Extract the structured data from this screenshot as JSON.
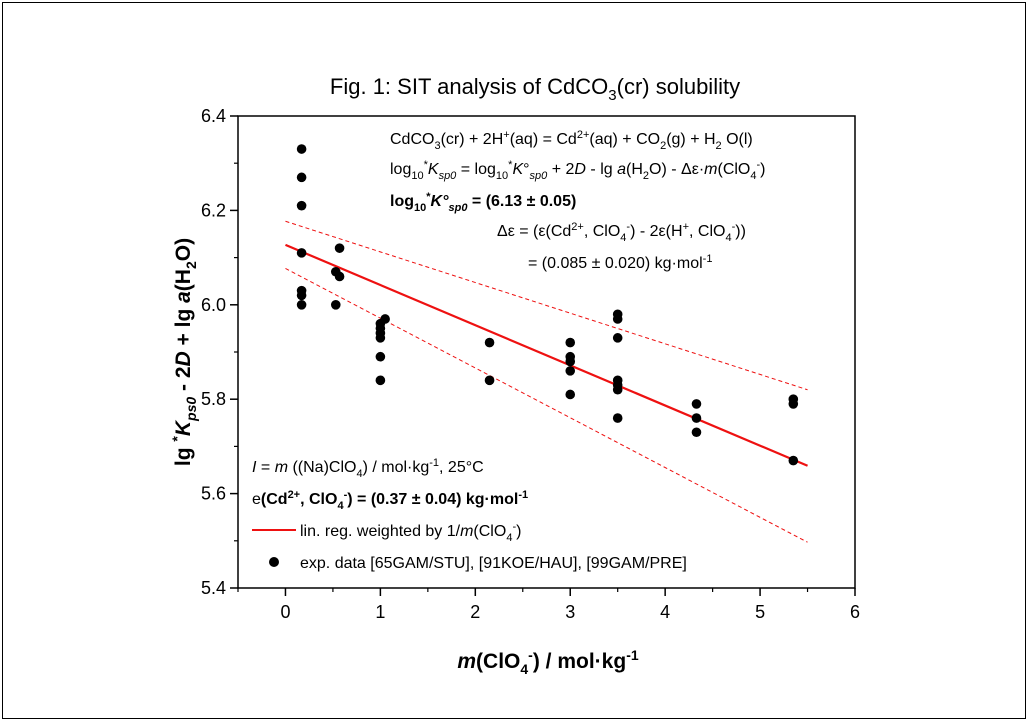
{
  "chart_data": {
    "type": "scatter",
    "title_pre": "Fig. 1: SIT analysis of CdCO",
    "title_sub": "3",
    "title_post": "(cr) solubility",
    "xlim": [
      -0.5,
      6
    ],
    "ylim": [
      5.4,
      6.4
    ],
    "x_ticks": [
      0,
      1,
      2,
      3,
      4,
      5,
      6
    ],
    "x_tick_labels": [
      "0",
      "1",
      "2",
      "3",
      "4",
      "5",
      "6"
    ],
    "y_ticks": [
      5.4,
      5.6,
      5.8,
      6.0,
      6.2,
      6.4
    ],
    "y_tick_labels": [
      "5.4",
      "5.6",
      "5.8",
      "6.0",
      "6.2",
      "6.4"
    ],
    "xlabel": {
      "m": "m",
      "a": "(ClO",
      "sub": "4",
      "sup": "-",
      "b": ") / mol·kg",
      "sup2": "-1"
    },
    "ylabel": {
      "a": "lg ",
      "sup": "*",
      "K": "K",
      "sub": "ps0",
      "b": " - 2",
      "D": "D",
      "c": " + lg ",
      "aa": "a",
      "d": "(H",
      "sub2": "2",
      "e": "O)"
    },
    "grid": false,
    "legend_position": "bottom-left",
    "series": [
      {
        "name": "exp. data [65GAM/STU], [91KOE/HAU], [99GAM/PRE]",
        "kind": "points",
        "color": "#000000",
        "points": [
          [
            0.17,
            6.33
          ],
          [
            0.17,
            6.27
          ],
          [
            0.17,
            6.21
          ],
          [
            0.17,
            6.11
          ],
          [
            0.17,
            6.03
          ],
          [
            0.17,
            6.02
          ],
          [
            0.17,
            6.0
          ],
          [
            0.53,
            6.07
          ],
          [
            0.53,
            6.0
          ],
          [
            0.57,
            6.12
          ],
          [
            0.57,
            6.06
          ],
          [
            1.0,
            5.96
          ],
          [
            1.0,
            5.95
          ],
          [
            1.0,
            5.94
          ],
          [
            1.0,
            5.93
          ],
          [
            1.0,
            5.89
          ],
          [
            1.0,
            5.84
          ],
          [
            1.05,
            5.97
          ],
          [
            2.15,
            5.92
          ],
          [
            2.15,
            5.84
          ],
          [
            3.0,
            5.92
          ],
          [
            3.0,
            5.89
          ],
          [
            3.0,
            5.88
          ],
          [
            3.0,
            5.86
          ],
          [
            3.0,
            5.81
          ],
          [
            3.5,
            5.98
          ],
          [
            3.5,
            5.97
          ],
          [
            3.5,
            5.93
          ],
          [
            3.5,
            5.84
          ],
          [
            3.5,
            5.83
          ],
          [
            3.5,
            5.82
          ],
          [
            3.5,
            5.76
          ],
          [
            4.33,
            5.79
          ],
          [
            4.33,
            5.76
          ],
          [
            4.33,
            5.73
          ],
          [
            5.35,
            5.8
          ],
          [
            5.35,
            5.79
          ],
          [
            5.35,
            5.67
          ]
        ]
      },
      {
        "name": "lin. reg. weighted by 1/m(ClO4-)",
        "kind": "line",
        "color": "#ee1111",
        "points": [
          [
            0,
            6.127
          ],
          [
            5.5,
            5.659
          ]
        ]
      },
      {
        "kind": "confidence-upper",
        "color": "#ee1111",
        "points": [
          [
            0,
            6.177
          ],
          [
            5.5,
            5.82
          ]
        ]
      },
      {
        "kind": "confidence-lower",
        "color": "#ee1111",
        "points": [
          [
            0,
            6.077
          ],
          [
            5.5,
            5.497
          ]
        ]
      }
    ],
    "annotations": {
      "reaction": "CdCO3(cr) + 2H+(aq) = Cd2+(aq) + CO2(g) + H2 O(l)",
      "log_eq": "log10 *Ksp0 = log10 *K°sp0 + 2D - lg a(H2O) - Δε·m(ClO4-)",
      "log_result": "log10 *K°sp0 = (6.13 ± 0.05)",
      "delta_eps": "Δε = (ε(Cd2+, ClO4-) - 2ε(H+, ClO4-))",
      "delta_eps_val": "= (0.085 ± 0.020) kg·mol-1",
      "ionic": "I = m ((Na)ClO4) / mol·kg-1, 25°C",
      "eps_cd": "e(Cd2+, ClO4-) = (0.37 ± 0.04) kg·mol-1"
    },
    "legend": [
      {
        "label_pre": "lin. reg. weighted by 1/",
        "label_m": "m",
        "label_a": "(ClO",
        "label_sub": "4",
        "label_sup": "-",
        "label_b": ")"
      },
      {
        "label": "exp. data [65GAM/STU], [91KOE/HAU], [99GAM/PRE]"
      }
    ]
  }
}
